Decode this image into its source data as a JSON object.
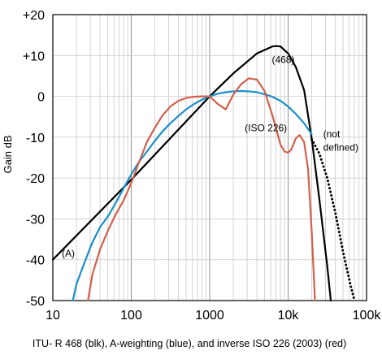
{
  "chart_data": {
    "type": "line",
    "ylabel": "Gain dB",
    "caption": "ITU- R 468 (blk), A-weighting (blue), and inverse ISO 226 (2003) (red)",
    "x_scale": "log",
    "xlim": [
      10,
      100000
    ],
    "ylim": [
      -50,
      20
    ],
    "grid": true,
    "x_tick_labels": [
      "10",
      "100",
      "1000",
      "10k",
      "100k"
    ],
    "y_tick_labels": [
      "+20",
      "+10",
      "0",
      "-10",
      "-20",
      "-30",
      "-40",
      "-50"
    ],
    "y_ticks": [
      20,
      10,
      0,
      -10,
      -20,
      -30,
      -40,
      -50
    ],
    "annotations": [
      {
        "text": "(468)",
        "x": 6200,
        "y": 8.2
      },
      {
        "text": "(ISO 226)",
        "x": 2800,
        "y": -8.5
      },
      {
        "text": "(not",
        "x": 28000,
        "y": -10
      },
      {
        "text": "defined)",
        "x": 28000,
        "y": -13.3
      },
      {
        "text": "(A)",
        "x": 13,
        "y": -39.3
      }
    ],
    "series": [
      {
        "color": "#000000",
        "width": 2.2,
        "points": [
          [
            10,
            -40
          ],
          [
            100,
            -20.4
          ],
          [
            1000,
            0
          ],
          [
            2000,
            5.6
          ],
          [
            4000,
            10.5
          ],
          [
            6300,
            12.2
          ],
          [
            7000,
            12.3
          ],
          [
            8000,
            12.2
          ],
          [
            10000,
            10.5
          ],
          [
            12500,
            7.2
          ],
          [
            16000,
            1.5
          ],
          [
            20000,
            -10.3
          ],
          [
            25000,
            -25.1
          ],
          [
            31500,
            -41.5
          ],
          [
            35000,
            -50
          ]
        ]
      },
      {
        "color": "#1a8fc9",
        "width": 2.2,
        "points": [
          [
            18,
            -50
          ],
          [
            20,
            -46
          ],
          [
            25,
            -41
          ],
          [
            31.5,
            -36
          ],
          [
            40,
            -32
          ],
          [
            50,
            -29.5
          ],
          [
            63,
            -26.2
          ],
          [
            80,
            -22.5
          ],
          [
            100,
            -19.1
          ],
          [
            125,
            -16.1
          ],
          [
            160,
            -13.4
          ],
          [
            200,
            -10.9
          ],
          [
            250,
            -8.6
          ],
          [
            315,
            -6.6
          ],
          [
            400,
            -4.8
          ],
          [
            500,
            -3.2
          ],
          [
            630,
            -1.9
          ],
          [
            800,
            -0.8
          ],
          [
            1000,
            0
          ],
          [
            1250,
            0.6
          ],
          [
            1600,
            1.0
          ],
          [
            2000,
            1.2
          ],
          [
            2500,
            1.3
          ],
          [
            3150,
            1.2
          ],
          [
            4000,
            1.0
          ],
          [
            5000,
            0.5
          ],
          [
            6300,
            -0.1
          ],
          [
            8000,
            -1.1
          ],
          [
            10000,
            -2.5
          ],
          [
            12500,
            -4.3
          ],
          [
            16000,
            -6.6
          ],
          [
            20000,
            -9.3
          ]
        ]
      },
      {
        "color": "#d2604a",
        "width": 2.2,
        "points": [
          [
            28,
            -50
          ],
          [
            32,
            -43.6
          ],
          [
            40,
            -37.5
          ],
          [
            50,
            -33
          ],
          [
            63,
            -29
          ],
          [
            80,
            -25.5
          ],
          [
            100,
            -21.2
          ],
          [
            125,
            -16.2
          ],
          [
            160,
            -11
          ],
          [
            200,
            -7.7
          ],
          [
            250,
            -4.7
          ],
          [
            315,
            -2.5
          ],
          [
            400,
            -1.1
          ],
          [
            500,
            -0.4
          ],
          [
            630,
            -0.1
          ],
          [
            800,
            0
          ],
          [
            1000,
            0
          ],
          [
            1250,
            -1.8
          ],
          [
            1600,
            -3.2
          ],
          [
            2000,
            0.4
          ],
          [
            2500,
            2.9
          ],
          [
            3150,
            4.4
          ],
          [
            4000,
            4.1
          ],
          [
            5000,
            1.3
          ],
          [
            6300,
            -4.6
          ],
          [
            8000,
            -11.8
          ],
          [
            9000,
            -13.5
          ],
          [
            10000,
            -13.8
          ],
          [
            11000,
            -13
          ],
          [
            12500,
            -10.3
          ],
          [
            14000,
            -9.5
          ],
          [
            16000,
            -11.2
          ],
          [
            18000,
            -18
          ],
          [
            20000,
            -33
          ],
          [
            22000,
            -50
          ]
        ]
      },
      {
        "color": "#000000",
        "width": 2.2,
        "dotted": true,
        "points": [
          [
            20000,
            -10.5
          ],
          [
            25000,
            -14
          ],
          [
            31500,
            -20
          ],
          [
            40000,
            -28.5
          ],
          [
            50000,
            -38
          ],
          [
            63000,
            -46.5
          ],
          [
            70000,
            -50
          ]
        ]
      }
    ]
  }
}
